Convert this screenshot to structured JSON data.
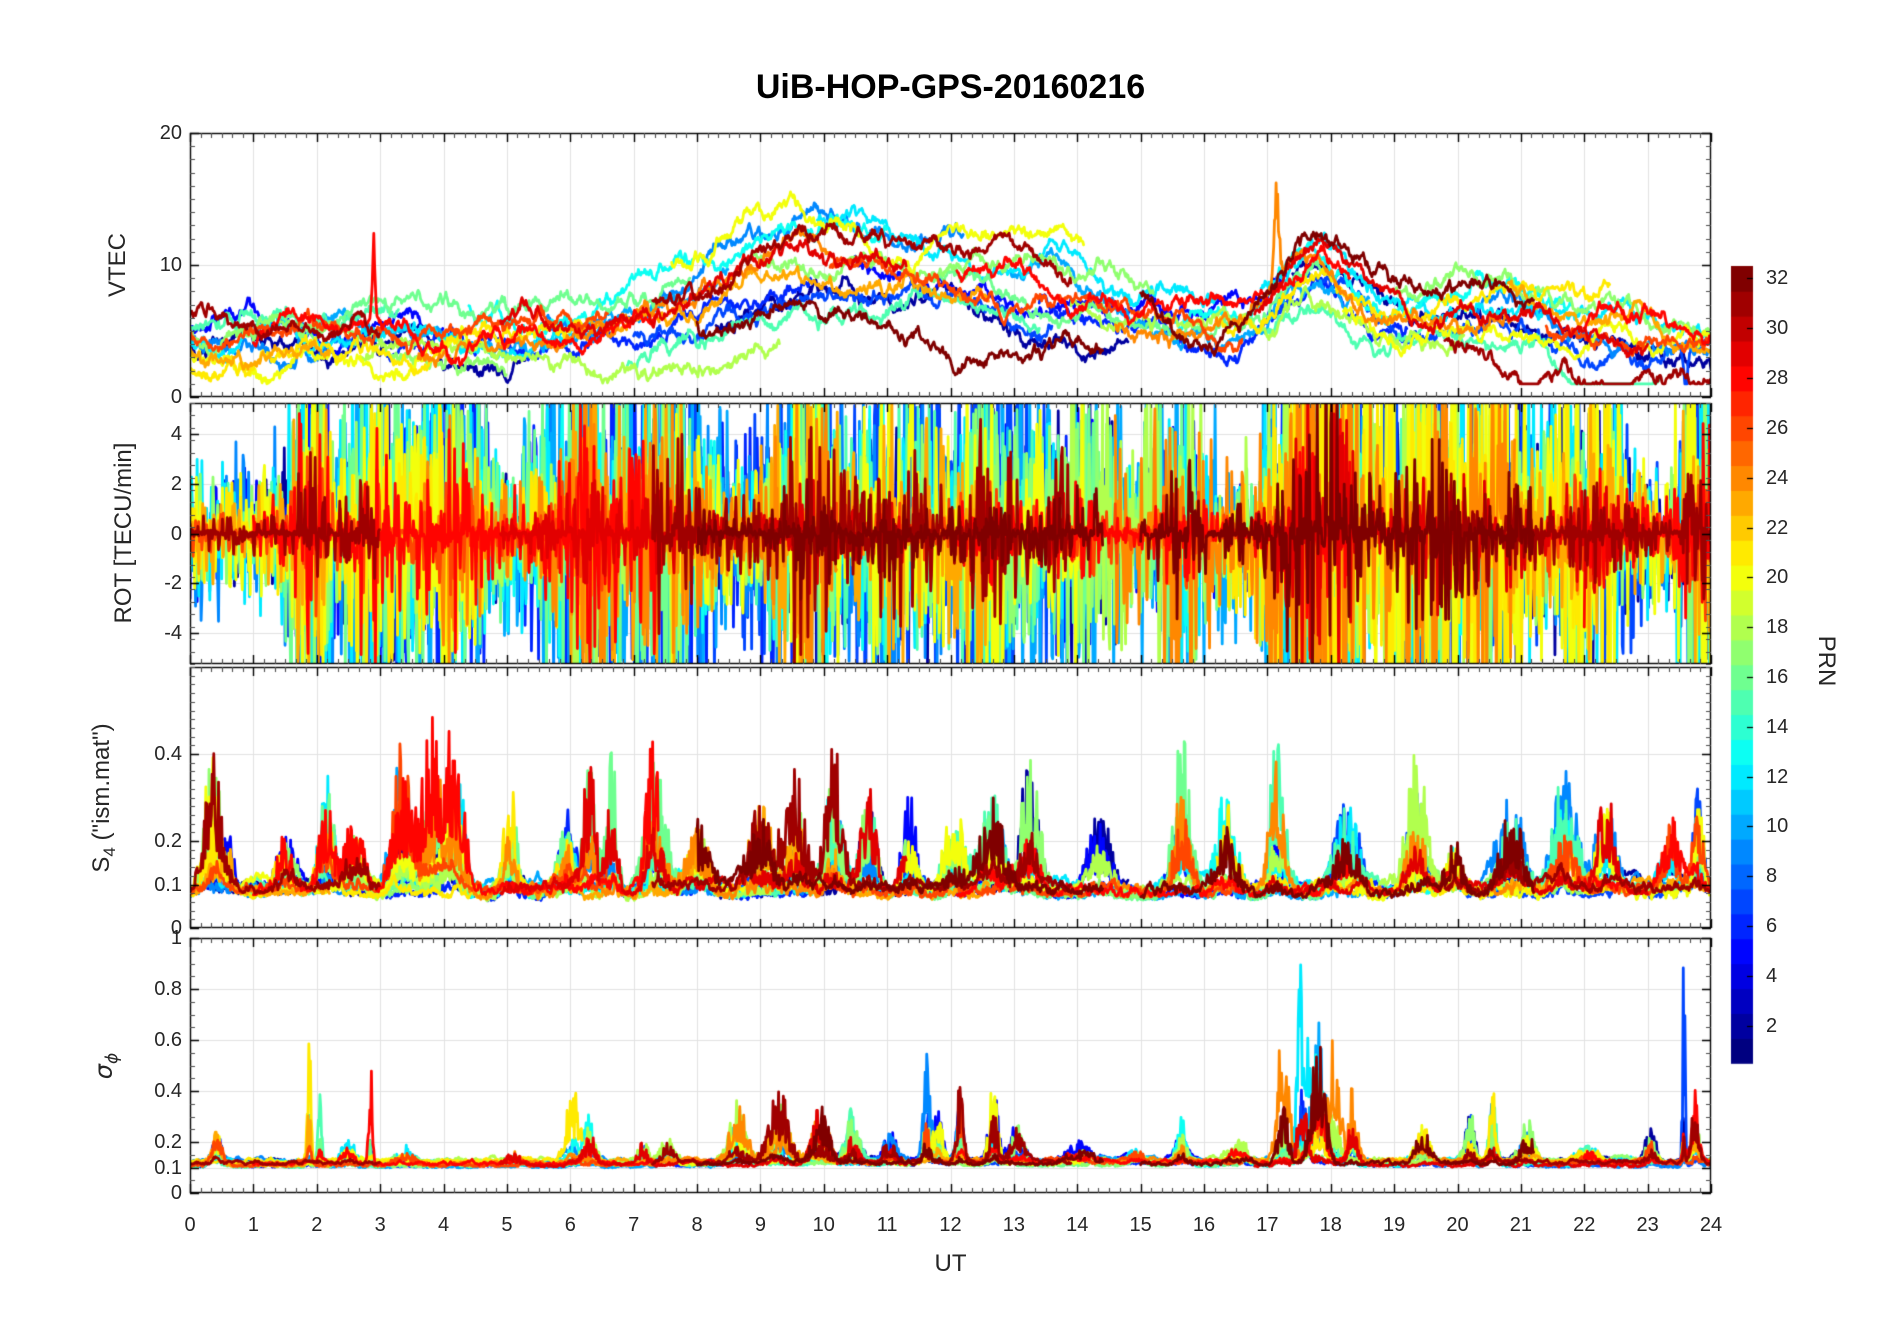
{
  "title": "UiB-HOP-GPS-20160216",
  "colors": {
    "axis": "#000000",
    "tick_label": "#262626",
    "grid": "#e2e2e2",
    "minor_tick": "#4d4d4d",
    "background": "#ffffff"
  },
  "chart_data": {
    "type": "line",
    "title": "UiB-HOP-GPS-20160216",
    "x": {
      "label": "UT",
      "min": 0,
      "max": 24,
      "ticks": [
        0,
        1,
        2,
        3,
        4,
        5,
        6,
        7,
        8,
        9,
        10,
        11,
        12,
        13,
        14,
        15,
        16,
        17,
        18,
        19,
        20,
        21,
        22,
        23,
        24
      ],
      "minor_step_hours": 0.16667,
      "grid": true
    },
    "colorbar": {
      "label": "PRN",
      "min": 1,
      "max": 32,
      "colormap": "jet",
      "discrete_levels": 32,
      "ticks": [
        2,
        4,
        6,
        8,
        10,
        12,
        14,
        16,
        18,
        20,
        22,
        24,
        26,
        28,
        30,
        32
      ]
    },
    "panels": [
      {
        "name": "VTEC",
        "ylabel": "VTEC",
        "ylim": [
          0,
          20
        ],
        "yticks": [
          0,
          10,
          20
        ],
        "minor_step": 1,
        "grid": true,
        "model": {
          "kind": "vtec",
          "base": 4.6,
          "day_shape": [
            [
              9.5,
              4.5,
              1.9
            ],
            [
              12.8,
              3.2,
              2.6
            ],
            [
              17.75,
              5.0,
              0.78
            ],
            [
              20.3,
              2.6,
              1.6
            ]
          ],
          "spikes": [
            [
              2.9,
              5.5,
              0.03,
              28
            ],
            [
              17.15,
              6.0,
              0.05,
              24
            ],
            [
              23.6,
              -3.5,
              0.05,
              7
            ],
            [
              1.75,
              3.5,
              0.05,
              9
            ]
          ]
        }
      },
      {
        "name": "ROT",
        "ylabel": "ROT [TECU/min]",
        "ylim": [
          -5.25,
          5.25
        ],
        "yticks": [
          -4,
          -2,
          0,
          2,
          4
        ],
        "minor_step": 0.5,
        "grid": true,
        "model": {
          "kind": "rot",
          "base_amp": 0.5,
          "events": [
            [
              1.9,
              1.5,
              0.3
            ],
            [
              2.9,
              1.1,
              0.4
            ],
            [
              4.1,
              0.9,
              0.5
            ],
            [
              6.3,
              1.2,
              0.6
            ],
            [
              7.6,
              1.0,
              0.5
            ],
            [
              9.7,
              1.5,
              0.5
            ],
            [
              11.2,
              0.9,
              0.6
            ],
            [
              12.6,
              1.2,
              0.5
            ],
            [
              14.0,
              0.9,
              0.6
            ],
            [
              15.6,
              1.0,
              0.4
            ],
            [
              17.6,
              2.4,
              0.5
            ],
            [
              18.15,
              1.8,
              0.4
            ],
            [
              19.5,
              1.3,
              0.6
            ],
            [
              20.6,
              0.9,
              0.5
            ],
            [
              22.0,
              0.85,
              0.6
            ],
            [
              23.8,
              1.7,
              0.25
            ]
          ]
        }
      },
      {
        "name": "S4",
        "ylabel": "S4 (\"ism.mat\")",
        "ylabel_parts": {
          "main": "S",
          "sub": "4",
          "rest": " (\"ism.mat\")"
        },
        "ylim": [
          0,
          0.6
        ],
        "yticks": [
          0,
          0.1,
          0.2,
          0.4
        ],
        "minor_step": 0.02,
        "grid": true,
        "model": {
          "kind": "s4",
          "baseline": 0.062,
          "events": [
            [
              0.35,
              0.26,
              0.18,
              0
            ],
            [
              0.6,
              0.18,
              0.12,
              0
            ],
            [
              1.5,
              0.1,
              0.2,
              0
            ],
            [
              2.15,
              0.2,
              0.18,
              0
            ],
            [
              2.6,
              0.13,
              0.2,
              0
            ],
            [
              3.35,
              0.26,
              0.22,
              0
            ],
            [
              3.85,
              0.28,
              0.25,
              0
            ],
            [
              4.2,
              0.22,
              0.18,
              0
            ],
            [
              5.05,
              0.2,
              0.15,
              0
            ],
            [
              5.95,
              0.22,
              0.18,
              0
            ],
            [
              6.3,
              0.32,
              0.13,
              0
            ],
            [
              6.65,
              0.26,
              0.12,
              0
            ],
            [
              7.35,
              0.28,
              0.2,
              0
            ],
            [
              8.0,
              0.12,
              0.25,
              0
            ],
            [
              9.0,
              0.16,
              0.25,
              0
            ],
            [
              9.55,
              0.26,
              0.22,
              0
            ],
            [
              10.15,
              0.26,
              0.18,
              0
            ],
            [
              10.7,
              0.18,
              0.18,
              0
            ],
            [
              11.35,
              0.2,
              0.16,
              0
            ],
            [
              12.05,
              0.16,
              0.2,
              0
            ],
            [
              12.65,
              0.2,
              0.25,
              0
            ],
            [
              13.25,
              0.22,
              0.22,
              0
            ],
            [
              14.35,
              0.16,
              0.25,
              0
            ],
            [
              15.65,
              0.28,
              0.18,
              0
            ],
            [
              16.35,
              0.18,
              0.22,
              0
            ],
            [
              17.15,
              0.28,
              0.18,
              0
            ],
            [
              18.25,
              0.18,
              0.25,
              0
            ],
            [
              19.35,
              0.26,
              0.22,
              0
            ],
            [
              19.95,
              0.22,
              0.18,
              0
            ],
            [
              20.85,
              0.18,
              0.25,
              0
            ],
            [
              21.7,
              0.22,
              0.25,
              0
            ],
            [
              22.35,
              0.18,
              0.22,
              0
            ],
            [
              23.35,
              0.18,
              0.18,
              0
            ],
            [
              23.8,
              0.2,
              0.12,
              0
            ]
          ]
        }
      },
      {
        "name": "sigma_phi",
        "ylabel": "σ_ϕ",
        "ylabel_parts": {
          "main": "σ",
          "sub": "ϕ"
        },
        "ylim": [
          0,
          1
        ],
        "yticks": [
          0,
          0.1,
          0.2,
          0.4,
          0.6,
          0.8,
          1
        ],
        "minor_step": 0.05,
        "grid": true,
        "model": {
          "kind": "sigphi",
          "baseline": 0.098,
          "events": [
            [
              0.42,
              0.2,
              0.1,
              0
            ],
            [
              1.88,
              0.78,
              0.035,
              21
            ],
            [
              2.05,
              0.6,
              0.04,
              15
            ],
            [
              2.5,
              0.09,
              0.15,
              0
            ],
            [
              2.85,
              0.44,
              0.04,
              28
            ],
            [
              3.4,
              0.06,
              0.2,
              0
            ],
            [
              5.1,
              0.05,
              0.2,
              0
            ],
            [
              6.05,
              0.3,
              0.16,
              21
            ],
            [
              6.3,
              0.2,
              0.12,
              0
            ],
            [
              7.15,
              0.1,
              0.1,
              0
            ],
            [
              7.55,
              0.13,
              0.15,
              0
            ],
            [
              8.65,
              0.24,
              0.18,
              0
            ],
            [
              9.3,
              0.3,
              0.22,
              0
            ],
            [
              9.95,
              0.22,
              0.18,
              0
            ],
            [
              10.45,
              0.18,
              0.15,
              0
            ],
            [
              11.05,
              0.1,
              0.15,
              0
            ],
            [
              11.62,
              0.55,
              0.07,
              9
            ],
            [
              11.8,
              0.28,
              0.1,
              0
            ],
            [
              12.15,
              0.36,
              0.08,
              0
            ],
            [
              12.68,
              0.33,
              0.1,
              0
            ],
            [
              13.05,
              0.14,
              0.15,
              0
            ],
            [
              14.05,
              0.07,
              0.3,
              0
            ],
            [
              14.95,
              0.1,
              0.15,
              0
            ],
            [
              15.65,
              0.2,
              0.12,
              0
            ],
            [
              16.55,
              0.09,
              0.2,
              0
            ],
            [
              17.25,
              0.72,
              0.12,
              24
            ],
            [
              17.55,
              0.95,
              0.1,
              12
            ],
            [
              17.8,
              0.5,
              0.15,
              0
            ],
            [
              18.05,
              0.55,
              0.12,
              24
            ],
            [
              18.35,
              0.28,
              0.1,
              0
            ],
            [
              19.45,
              0.16,
              0.15,
              0
            ],
            [
              20.2,
              0.3,
              0.1,
              0
            ],
            [
              20.55,
              0.33,
              0.08,
              0
            ],
            [
              21.1,
              0.14,
              0.15,
              0
            ],
            [
              22.05,
              0.09,
              0.2,
              0
            ],
            [
              23.05,
              0.16,
              0.1,
              0
            ],
            [
              23.57,
              0.9,
              0.03,
              7
            ],
            [
              23.75,
              0.26,
              0.08,
              0
            ]
          ]
        }
      }
    ],
    "arcs": [
      [
        2,
        0,
        5.3
      ],
      [
        2,
        8.3,
        14.8
      ],
      [
        2,
        17.4,
        24
      ],
      [
        5,
        0,
        4.0
      ],
      [
        5,
        10.5,
        17.3
      ],
      [
        6,
        3.1,
        9.8
      ],
      [
        6,
        13.4,
        19.2
      ],
      [
        7,
        7.0,
        13.6
      ],
      [
        7,
        17.0,
        24
      ],
      [
        9,
        0,
        2.6
      ],
      [
        9,
        5.6,
        12.2
      ],
      [
        9,
        20.3,
        24
      ],
      [
        10,
        2.0,
        8.5
      ],
      [
        10,
        12.8,
        18.6
      ],
      [
        12,
        0,
        6.2
      ],
      [
        12,
        9.9,
        16.2
      ],
      [
        12,
        16.9,
        24
      ],
      [
        13,
        4.4,
        11.0
      ],
      [
        13,
        15.5,
        21.8
      ],
      [
        15,
        0,
        3.3
      ],
      [
        15,
        6.9,
        13.4
      ],
      [
        15,
        17.0,
        23.2
      ],
      [
        16,
        1.5,
        7.9
      ],
      [
        16,
        11.7,
        17.9
      ],
      [
        17,
        0,
        5.0
      ],
      [
        17,
        8.9,
        15.2
      ],
      [
        17,
        19.0,
        24
      ],
      [
        18,
        2.7,
        9.3
      ],
      [
        18,
        13.9,
        20.1
      ],
      [
        20,
        0,
        4.6
      ],
      [
        20,
        7.6,
        14.1
      ],
      [
        20,
        18.2,
        24
      ],
      [
        21,
        0,
        6.2
      ],
      [
        21,
        16.2,
        22.4
      ],
      [
        23,
        0,
        2.2
      ],
      [
        23,
        6.0,
        12.6
      ],
      [
        23,
        20.8,
        24
      ],
      [
        24,
        3.6,
        10.2
      ],
      [
        24,
        14.6,
        20.9
      ],
      [
        26,
        0,
        6.6
      ],
      [
        26,
        10.1,
        16.6
      ],
      [
        26,
        21.4,
        24
      ],
      [
        28,
        1.0,
        7.4
      ],
      [
        28,
        12.1,
        18.3
      ],
      [
        28,
        22.0,
        24
      ],
      [
        29,
        4.9,
        11.3
      ],
      [
        29,
        16.8,
        23.0
      ],
      [
        31,
        0,
        3.0
      ],
      [
        31,
        7.3,
        13.9
      ],
      [
        31,
        19.8,
        24
      ],
      [
        32,
        8.0,
        14.4
      ],
      [
        32,
        15.0,
        21.2
      ]
    ]
  }
}
